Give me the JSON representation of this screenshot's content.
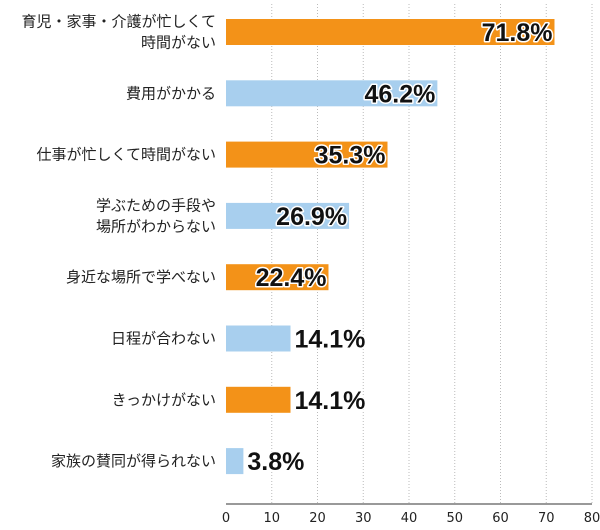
{
  "chart_data": {
    "type": "bar",
    "orientation": "horizontal",
    "categories": [
      [
        "育児・家事・介護が忙しくて",
        "時間がない"
      ],
      [
        "費用がかかる"
      ],
      [
        "仕事が忙しくて時間がない"
      ],
      [
        "学ぶための手段や",
        "場所がわからない"
      ],
      [
        "身近な場所で学べない"
      ],
      [
        "日程が合わない"
      ],
      [
        "きっかけがない"
      ],
      [
        "家族の賛同が得られない"
      ]
    ],
    "values": [
      71.8,
      46.2,
      35.3,
      26.9,
      22.4,
      14.1,
      14.1,
      3.8
    ],
    "value_labels": [
      "71.8%",
      "46.2%",
      "35.3%",
      "26.9%",
      "22.4%",
      "14.1%",
      "14.1%",
      "3.8%"
    ],
    "bar_colors": [
      "#f39218",
      "#a8cfee",
      "#f39218",
      "#a8cfee",
      "#f39218",
      "#a8cfee",
      "#f39218",
      "#a8cfee"
    ],
    "xlim": [
      0,
      80
    ],
    "xticks": [
      0,
      10,
      20,
      30,
      40,
      50,
      60,
      70,
      80
    ],
    "grid": true,
    "title": "",
    "xlabel": "",
    "ylabel": ""
  }
}
